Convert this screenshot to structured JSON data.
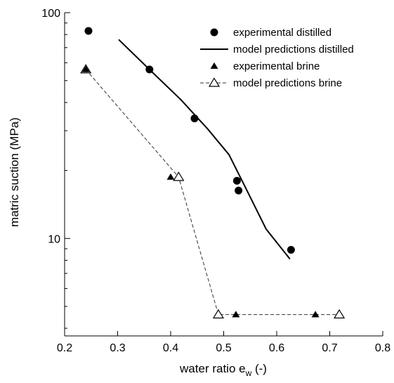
{
  "chart_data": {
    "type": "scatter",
    "xlabel": "water ratio e",
    "xlabel_sub": "w",
    "xlabel_unit": " (-)",
    "ylabel": "matric suction (MPa)",
    "xlim": [
      0.2,
      0.8
    ],
    "ylim": [
      3.7,
      100
    ],
    "y_scale": "log",
    "x_ticks": [
      "0.2",
      "0.3",
      "0.4",
      "0.5",
      "0.6",
      "0.7",
      "0.8"
    ],
    "y_ticks": [
      "10",
      "100"
    ],
    "grid": false,
    "legend_position": "top-right",
    "series": [
      {
        "name": "experimental distilled",
        "style": "filled-circle",
        "x": [
          0.245,
          0.36,
          0.445,
          0.525,
          0.528,
          0.627
        ],
        "y": [
          83,
          56,
          34,
          18,
          16.3,
          8.9
        ]
      },
      {
        "name": "model predictions distilled",
        "style": "solid-line",
        "x": [
          0.302,
          0.36,
          0.42,
          0.47,
          0.51,
          0.54,
          0.58,
          0.625
        ],
        "y": [
          76,
          56,
          41,
          30.5,
          23.5,
          17,
          11,
          8.1
        ]
      },
      {
        "name": "experimental brine",
        "style": "filled-triangle",
        "x": [
          0.24,
          0.4,
          0.523,
          0.673
        ],
        "y": [
          56,
          18.7,
          4.6,
          4.6
        ]
      },
      {
        "name": "model predictions brine",
        "style": "dashed-line-open-triangle",
        "x": [
          0.24,
          0.415,
          0.49,
          0.718
        ],
        "y": [
          56,
          18.7,
          4.6,
          4.6
        ]
      }
    ]
  },
  "colors": {
    "ink": "#000000",
    "dash": "#333333",
    "background": "#ffffff"
  }
}
